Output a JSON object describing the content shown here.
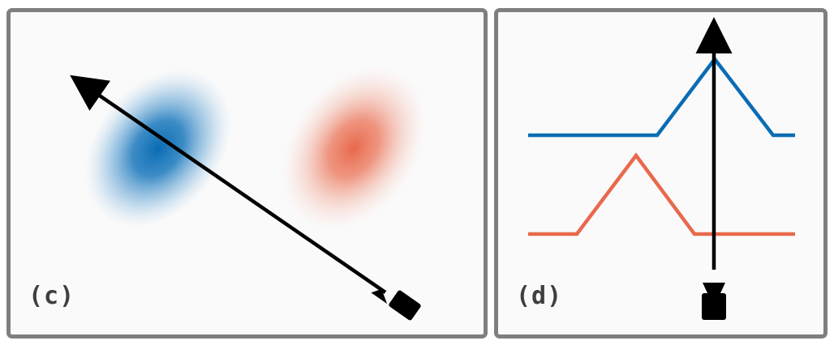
{
  "panels": [
    {
      "id": "c",
      "label": "(c)"
    },
    {
      "id": "d",
      "label": "(d)"
    }
  ],
  "colors": {
    "blue": "#0a6cb4",
    "red": "#e8694c",
    "frame": "#7f7f7f",
    "background": "#fafafa",
    "arrow": "#000000"
  }
}
